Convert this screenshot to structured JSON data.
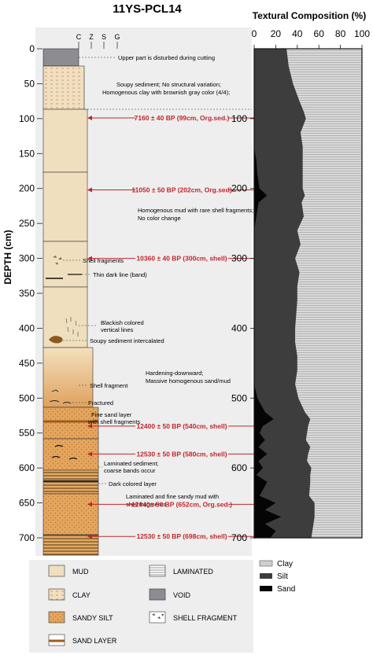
{
  "core": {
    "title": "11YS-PCL14",
    "depth_axis_label": "DEPTH (cm)",
    "depth_ticks": [
      "0",
      "50",
      "100",
      "150",
      "200",
      "250",
      "300",
      "350",
      "400",
      "450",
      "500",
      "550",
      "600",
      "650",
      "700"
    ],
    "grain_scale": [
      "C",
      "Z",
      "S",
      "G"
    ]
  },
  "composition": {
    "title": "Textural Composition (%)",
    "x_ticks": [
      "0",
      "20",
      "40",
      "60",
      "80",
      "100"
    ],
    "depth_ticks": [
      "100",
      "200",
      "300",
      "400",
      "500",
      "600",
      "700"
    ],
    "legend": [
      {
        "label": "Clay",
        "color": "#cfcfcf"
      },
      {
        "label": "Silt",
        "color": "#3d3d3d"
      },
      {
        "label": "Sand",
        "color": "#050505"
      }
    ]
  },
  "annotations": [
    {
      "text": "Upper part is disturbed during cutting"
    },
    {
      "text": "Soupy sediment; No structural variation;"
    },
    {
      "text": "Homogenous clay with brownish gray color (4/4);"
    },
    {
      "text": "Homogenous mud with rare shell fragments;"
    },
    {
      "text": "No color change"
    },
    {
      "text": "Shell fragments"
    },
    {
      "text": "Thin dark line (band)"
    },
    {
      "text": "Blackish colored"
    },
    {
      "text": "vertical lines"
    },
    {
      "text": "Soupy sediment intercalated"
    },
    {
      "text": "Hardening-downward;"
    },
    {
      "text": "Massive homogenous sand/mud"
    },
    {
      "text": "Shell fragment"
    },
    {
      "text": "Fractured"
    },
    {
      "text": "Fine sand layer"
    },
    {
      "text": "with shell fragments"
    },
    {
      "text": "Laminated sediment;"
    },
    {
      "text": "coarse bands occur"
    },
    {
      "text": "Dark colored layer"
    },
    {
      "text": "Laminated and fine sandy mud with"
    },
    {
      "text": "shell fragments"
    }
  ],
  "ages": [
    {
      "label": "7160 ± 40 BP (99cm, Org.sed.)",
      "depth": 99
    },
    {
      "label": "11050 ± 50 BP (202cm, Org.sed)",
      "depth": 202
    },
    {
      "label": "10360 ± 40 BP (300cm, shell)",
      "depth": 300
    },
    {
      "label": "12400 ± 50 BP (540cm, shell)",
      "depth": 540
    },
    {
      "label": "12530 ± 50 BP (580cm, shell)",
      "depth": 580
    },
    {
      "label": "12640± 50 BP (652cm, Org.sed.)",
      "depth": 652
    },
    {
      "label": "12530 ± 50 BP (698cm, shell)",
      "depth": 698
    }
  ],
  "lithology_legend": [
    {
      "label": "MUD"
    },
    {
      "label": "LAMINATED"
    },
    {
      "label": "CLAY"
    },
    {
      "label": "VOID"
    },
    {
      "label": "SANDY SILT"
    },
    {
      "label": "SHELL FRAGMENT"
    },
    {
      "label": "SAND LAYER"
    }
  ],
  "chart_data": {
    "type": "area",
    "title": "Textural Composition (%)",
    "xlabel": "",
    "ylabel": "DEPTH (cm)",
    "xlim": [
      0,
      100
    ],
    "ylim": [
      0,
      700
    ],
    "depth": [
      0,
      25,
      50,
      75,
      90,
      100,
      120,
      140,
      160,
      180,
      200,
      210,
      220,
      240,
      260,
      280,
      300,
      320,
      340,
      360,
      380,
      400,
      420,
      440,
      460,
      480,
      500,
      520,
      530,
      540,
      550,
      560,
      570,
      580,
      590,
      600,
      610,
      620,
      640,
      650,
      660,
      670,
      680,
      690,
      700
    ],
    "series": [
      {
        "name": "Sand",
        "values": [
          0,
          0,
          0,
          0,
          0,
          0,
          0,
          0,
          2,
          3,
          5,
          12,
          4,
          2,
          0,
          0,
          0,
          0,
          0,
          0,
          0,
          0,
          0,
          0,
          0,
          0,
          3,
          10,
          18,
          8,
          5,
          10,
          4,
          12,
          4,
          8,
          2,
          12,
          5,
          20,
          10,
          25,
          10,
          20,
          15
        ]
      },
      {
        "name": "Silt",
        "values": [
          30,
          32,
          36,
          42,
          46,
          48,
          43,
          45,
          43,
          42,
          40,
          35,
          40,
          44,
          40,
          43,
          38,
          42,
          40,
          40,
          39,
          38,
          38,
          40,
          40,
          38,
          38,
          37,
          34,
          42,
          44,
          38,
          48,
          38,
          45,
          45,
          50,
          40,
          46,
          36,
          46,
          31,
          45,
          34,
          38
        ]
      },
      {
        "name": "Clay",
        "values": [
          70,
          68,
          64,
          58,
          54,
          52,
          57,
          55,
          55,
          55,
          55,
          53,
          56,
          54,
          60,
          57,
          62,
          58,
          60,
          60,
          61,
          62,
          62,
          60,
          60,
          62,
          59,
          53,
          48,
          50,
          51,
          52,
          48,
          50,
          51,
          47,
          48,
          48,
          49,
          44,
          44,
          44,
          45,
          46,
          47
        ]
      }
    ]
  }
}
